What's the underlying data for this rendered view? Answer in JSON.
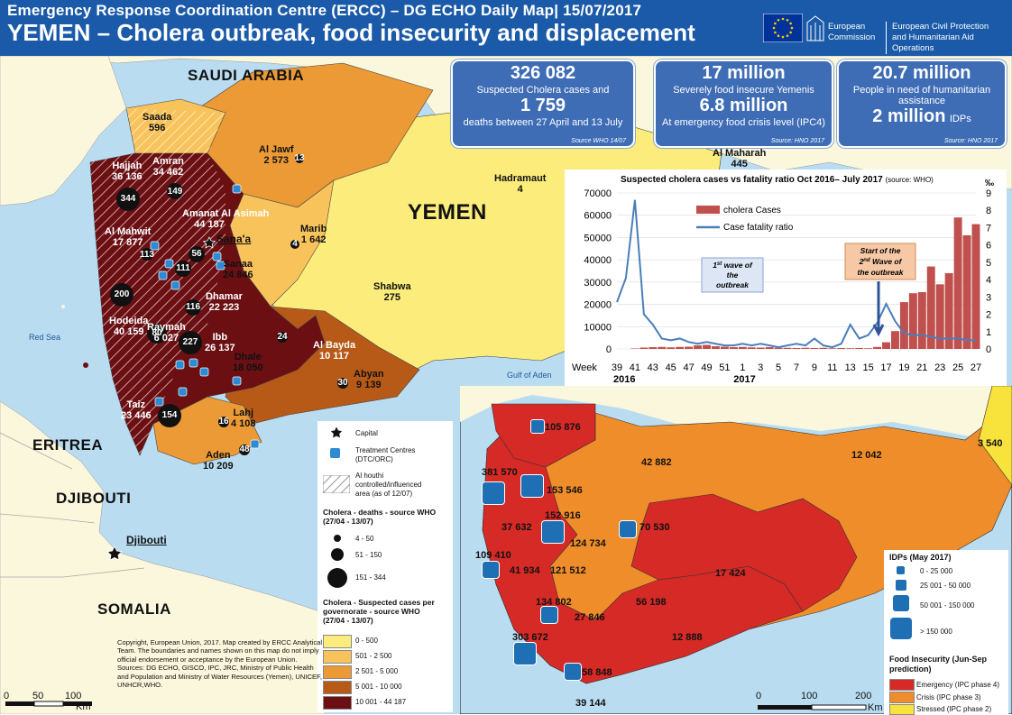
{
  "header": {
    "top_line": "Emergency Response Coordination Centre (ERCC) – DG ECHO Daily Map| 15/07/2017",
    "title": "YEMEN – Cholera outbreak, food insecurity and displacement",
    "ec_line1": "European",
    "ec_line2": "Commission",
    "echo_line1": "European Civil Protection",
    "echo_line2": "and Humanitarian Aid Operations"
  },
  "stats": [
    {
      "big": "326 082",
      "line1": "Suspected Cholera cases and",
      "big2": "1 759",
      "line2": "deaths between 27 April and 13 July",
      "source": "Source WHO 14/07"
    },
    {
      "big": "17 million",
      "line1": "Severely food insecure Yemenis",
      "big2": "6.8 million",
      "line2": "At emergency food crisis level (IPC4)",
      "source": "Source: HNO 2017"
    },
    {
      "big": "20.7 million",
      "line1": "People in need of humanitarian",
      "line1b": "assistance",
      "big2": "2 million",
      "big2_suffix": "IDPs",
      "source": "Source: HNO 2017"
    }
  ],
  "countries": {
    "saudi": "SAUDI ARABIA",
    "yemen": "YEMEN",
    "eritrea": "ERITREA",
    "djibouti": "DJIBOUTI",
    "somalia": "SOMALIA",
    "djibouti_capital": "Djibouti",
    "red_sea": "Red Sea",
    "gulf_aden": "Gulf of Aden"
  },
  "governorates": [
    {
      "name": "Saada",
      "value": "596"
    },
    {
      "name": "Hajjah",
      "value": "36 136"
    },
    {
      "name": "Amran",
      "value": "34 462"
    },
    {
      "name": "Al Jawf",
      "value": "2 573"
    },
    {
      "name": "Al Maharah",
      "value": "445"
    },
    {
      "name": "Hadramaut",
      "value": "4"
    },
    {
      "name": "Al Mahwit",
      "value": "17 877"
    },
    {
      "name": "Amanat Al Asimah",
      "value": "44 187"
    },
    {
      "name": "Marib",
      "value": "1 642"
    },
    {
      "name": "Sanaa",
      "value": "24 846"
    },
    {
      "name": "Shabwa",
      "value": "275"
    },
    {
      "name": "Dhamar",
      "value": "22 223"
    },
    {
      "name": "Hodeida",
      "value": "40 159"
    },
    {
      "name": "Raymah",
      "value": "6 027"
    },
    {
      "name": "Ibb",
      "value": "26 137"
    },
    {
      "name": "Al Bayda",
      "value": "10 117"
    },
    {
      "name": "Dhale",
      "value": "18 050"
    },
    {
      "name": "Abyan",
      "value": "9 139"
    },
    {
      "name": "Taiz",
      "value": "23 446"
    },
    {
      "name": "Lahj",
      "value": "4 108"
    },
    {
      "name": "Aden",
      "value": "10 209"
    }
  ],
  "capital_label": "Sana'a",
  "deaths_bubbles": [
    "344",
    "149",
    "113",
    "56",
    "111",
    "200",
    "80",
    "116",
    "227",
    "154",
    "24",
    "30",
    "13",
    "4",
    "16",
    "48"
  ],
  "chart_data": {
    "type": "bar",
    "title": "Suspected cholera cases vs fatality ratio Oct 2016– July 2017",
    "title_source": "(source: WHO)",
    "right_unit": "‰",
    "xlabel": "Week",
    "x": [
      39,
      40,
      41,
      42,
      43,
      44,
      45,
      46,
      47,
      48,
      49,
      50,
      51,
      52,
      1,
      2,
      3,
      4,
      5,
      6,
      7,
      8,
      9,
      10,
      11,
      12,
      13,
      14,
      15,
      16,
      17,
      18,
      19,
      20,
      21,
      22,
      23,
      24,
      25,
      26,
      27
    ],
    "x_ticks": [
      "39",
      "41",
      "43",
      "45",
      "47",
      "49",
      "51",
      "1",
      "3",
      "5",
      "7",
      "9",
      "11",
      "13",
      "15",
      "17",
      "19",
      "21",
      "23",
      "25",
      "27"
    ],
    "year_labels": [
      "2016",
      "2017"
    ],
    "ylim": [
      0,
      70000
    ],
    "y_ticks": [
      "0",
      "10000",
      "20000",
      "30000",
      "40000",
      "50000",
      "60000",
      "70000"
    ],
    "y2lim": [
      0,
      9
    ],
    "y2_ticks": [
      "0",
      "1",
      "2",
      "3",
      "4",
      "5",
      "6",
      "7",
      "8",
      "9"
    ],
    "series": [
      {
        "name": "cholera Cases",
        "values": [
          0,
          0,
          200,
          600,
          800,
          900,
          700,
          900,
          1000,
          1600,
          1800,
          1200,
          1000,
          800,
          900,
          700,
          600,
          800,
          500,
          500,
          400,
          500,
          400,
          500,
          300,
          400,
          300,
          400,
          300,
          900,
          3000,
          8000,
          21000,
          25000,
          25500,
          37000,
          29000,
          34000,
          59000,
          51000,
          56000
        ]
      },
      {
        "name": "Case fatality ratio",
        "values": [
          2.7,
          4.1,
          8.6,
          2.0,
          1.4,
          0.6,
          0.5,
          0.6,
          0.4,
          0.3,
          0.4,
          0.3,
          0.2,
          0.2,
          0.3,
          0.2,
          0.3,
          0.2,
          0.1,
          0.2,
          0.3,
          0.2,
          0.6,
          0.2,
          0.1,
          0.3,
          1.4,
          0.6,
          0.8,
          1.5,
          2.6,
          1.6,
          0.9,
          0.8,
          0.8,
          0.7,
          0.6,
          0.6,
          0.6,
          0.5,
          0.5
        ]
      }
    ],
    "annotations": [
      {
        "sup": "st",
        "text_before": "1",
        "text_after": " wave of the outbreak"
      },
      {
        "text": "Start of the",
        "sup_pre": "2",
        "sup": "nd",
        "text_after": " Wave of the outbreak"
      }
    ]
  },
  "legend_main": {
    "capital": "Capital",
    "treatment": "Treatment Centres",
    "treatment2": "(DTC/ORC)",
    "houthi1": "Al houthi",
    "houthi2": "controlled/influenced",
    "houthi3": "area (as of 12/07)",
    "deaths_title": "Cholera - deaths - source WHO",
    "deaths_sub": "(27/04 - 13/07)",
    "deaths_classes": [
      "4 - 50",
      "51 - 150",
      "151 - 344"
    ],
    "cases_title1": "Cholera - Suspected cases per",
    "cases_title2": "governorate - source WHO",
    "cases_title3": "(27/04 - 13/07)",
    "cases_classes": [
      "0 - 500",
      "501 - 2 500",
      "2 501 - 5 000",
      "5 001 - 10 000",
      "10 001 - 44 187"
    ],
    "cases_colors": [
      "#fbec7b",
      "#f8c35b",
      "#ec9a35",
      "#b75a18",
      "#6b0f13"
    ]
  },
  "copyright": "Copyright, European Union, 2017. Map created by ERCC Analytical Team. The boundaries and names shown on this map do not imply official endorsement or acceptance  by the European Union. Sources: DG ECHO, GISCO, IPC, JRC, Ministry of Public Health and Population and Ministry of Water Resources (Yemen), UNICEF, UNHCR,WHO.",
  "scale_main": [
    "0",
    "50",
    "100",
    "Km"
  ],
  "scale_inset": [
    "0",
    "100",
    "200",
    "Km"
  ],
  "idps": [
    "105 876",
    "381 570",
    "153 546",
    "42 882",
    "12 042",
    "3 540",
    "37 632",
    "152 916",
    "124 734",
    "70 530",
    "109 410",
    "41 934",
    "121 512",
    "134 802",
    "56 198",
    "17 424",
    "27 846",
    "303 672",
    "58 848",
    "39 144",
    "12 888"
  ],
  "legend_idp": {
    "title": "IDPs (May 2017)",
    "classes": [
      "0 - 25 000",
      "25 001 - 50 000",
      "50 001 - 150 000",
      "> 150 000"
    ],
    "food_title": "Food Insecurity (Jun-Sep prediction)",
    "food_classes": [
      "Emergency (IPC phase 4)",
      "Crisis (IPC phase 3)",
      "Stressed (IPC phase 2)"
    ],
    "food_colors": [
      "#d62a26",
      "#ef8d2a",
      "#f7e33b"
    ]
  }
}
